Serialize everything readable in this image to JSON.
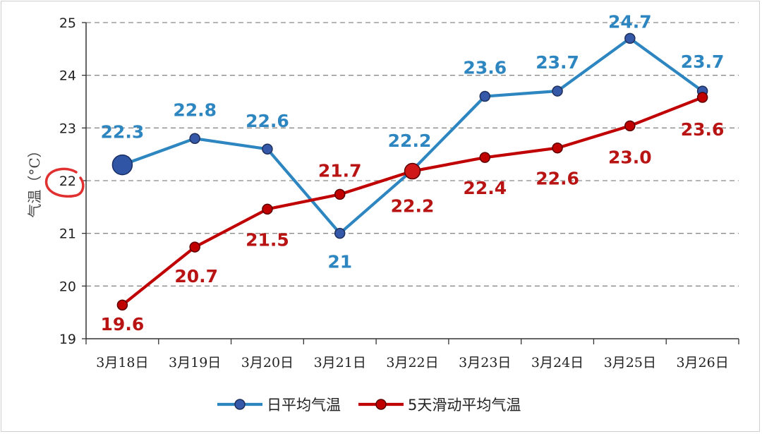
{
  "chart_data": {
    "type": "line",
    "categories": [
      "3月18日",
      "3月19日",
      "3月20日",
      "3月21日",
      "3月22日",
      "3月23日",
      "3月24日",
      "3月25日",
      "3月26日"
    ],
    "ylabel": "气温（°C）",
    "ylim": [
      19,
      25
    ],
    "yticks": [
      19,
      20,
      21,
      22,
      23,
      24,
      25
    ],
    "grid": true,
    "legend_position": "bottom",
    "series": [
      {
        "name": "日平均气温",
        "color": "#2E86C1",
        "values": [
          22.3,
          22.8,
          22.6,
          21.0,
          22.2,
          23.6,
          23.7,
          24.7,
          23.7
        ],
        "labels": [
          "22.3",
          "22.8",
          "22.6",
          "21",
          "22.2",
          "23.6",
          "23.7",
          "24.7",
          "23.7"
        ]
      },
      {
        "name": "5天滑动平均气温",
        "color": "#C00000",
        "values": [
          19.64,
          20.74,
          21.46,
          21.74,
          22.18,
          22.44,
          22.62,
          23.04,
          23.58
        ],
        "labels": [
          "19.6",
          "20.7",
          "21.5",
          "21.7",
          "22.2",
          "22.4",
          "22.6",
          "23.0",
          "23.6"
        ]
      }
    ]
  }
}
